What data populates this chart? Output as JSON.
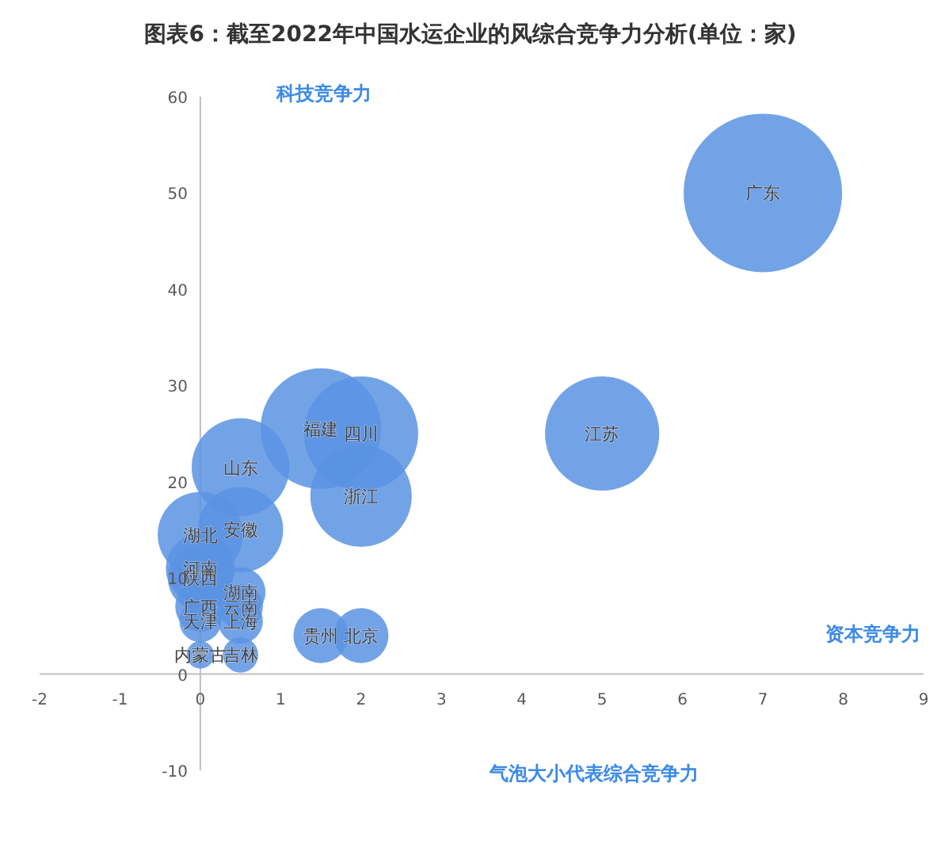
{
  "chart_data": {
    "type": "bubble",
    "title": "图表6：截至2022年中国水运企业的风综合竞争力分析(单位：家)",
    "annotations": [
      "科技竞争力",
      "资本竞争力",
      "气泡大小代表综合竞争力"
    ],
    "xlim": [
      -2,
      9
    ],
    "ylim": [
      -10,
      60
    ],
    "xticks": [
      -2,
      -1,
      0,
      1,
      2,
      3,
      4,
      5,
      6,
      7,
      8,
      9
    ],
    "yticks": [
      -10,
      0,
      10,
      20,
      30,
      40,
      50,
      60
    ],
    "grid": false,
    "series": [
      {
        "name": "广东",
        "color": "#5b93e3",
        "x": [
          7
        ],
        "values": [
          50
        ],
        "sizes": [
          1
        ]
      },
      {
        "name": "江苏",
        "color": "#5b93e3",
        "x": [
          5
        ],
        "values": [
          25
        ],
        "sizes": [
          0.52
        ]
      },
      {
        "name": "福建",
        "color": "#5b93e3",
        "x": [
          1.5
        ],
        "values": [
          25.5
        ],
        "sizes": [
          0.58
        ]
      },
      {
        "name": "四川",
        "color": "#5b93e3",
        "x": [
          2
        ],
        "values": [
          25
        ],
        "sizes": [
          0.52
        ]
      },
      {
        "name": "浙江",
        "color": "#5b93e3",
        "x": [
          2
        ],
        "values": [
          18.5
        ],
        "sizes": [
          0.41
        ]
      },
      {
        "name": "山东",
        "color": "#5b93e3",
        "x": [
          0.5
        ],
        "values": [
          21.5
        ],
        "sizes": [
          0.38
        ]
      },
      {
        "name": "安徽",
        "color": "#5b93e3",
        "x": [
          0.5
        ],
        "values": [
          15
        ],
        "sizes": [
          0.29
        ]
      },
      {
        "name": "湖北",
        "color": "#5b93e3",
        "x": [
          0
        ],
        "values": [
          14.5
        ],
        "sizes": [
          0.29
        ]
      },
      {
        "name": "河南",
        "color": "#5b93e3",
        "x": [
          0
        ],
        "values": [
          11
        ],
        "sizes": [
          0.19
        ]
      },
      {
        "name": "陕西",
        "color": "#5b93e3",
        "x": [
          0
        ],
        "values": [
          10
        ],
        "sizes": [
          0.17
        ]
      },
      {
        "name": "湖南",
        "color": "#5b93e3",
        "x": [
          0.5
        ],
        "values": [
          8.5
        ],
        "sizes": [
          0.1
        ]
      },
      {
        "name": "广西",
        "color": "#5b93e3",
        "x": [
          0
        ],
        "values": [
          7
        ],
        "sizes": [
          0.1
        ]
      },
      {
        "name": "云南",
        "color": "#5b93e3",
        "x": [
          0.5
        ],
        "values": [
          7
        ],
        "sizes": [
          0.08
        ]
      },
      {
        "name": "上海",
        "color": "#5b93e3",
        "x": [
          0.5
        ],
        "values": [
          5.5
        ],
        "sizes": [
          0.08
        ]
      },
      {
        "name": "天津",
        "color": "#5b93e3",
        "x": [
          0
        ],
        "values": [
          5.5
        ],
        "sizes": [
          0.07
        ]
      },
      {
        "name": "贵州",
        "color": "#5b93e3",
        "x": [
          1.5
        ],
        "values": [
          4
        ],
        "sizes": [
          0.12
        ]
      },
      {
        "name": "北京",
        "color": "#5b93e3",
        "x": [
          2
        ],
        "values": [
          4
        ],
        "sizes": [
          0.12
        ]
      },
      {
        "name": "吉林",
        "color": "#5b93e3",
        "x": [
          0.5
        ],
        "values": [
          2
        ],
        "sizes": [
          0.05
        ]
      },
      {
        "name": "内蒙古",
        "color": "#5b93e3",
        "x": [
          0
        ],
        "values": [
          2
        ],
        "sizes": [
          0.03
        ]
      }
    ]
  }
}
